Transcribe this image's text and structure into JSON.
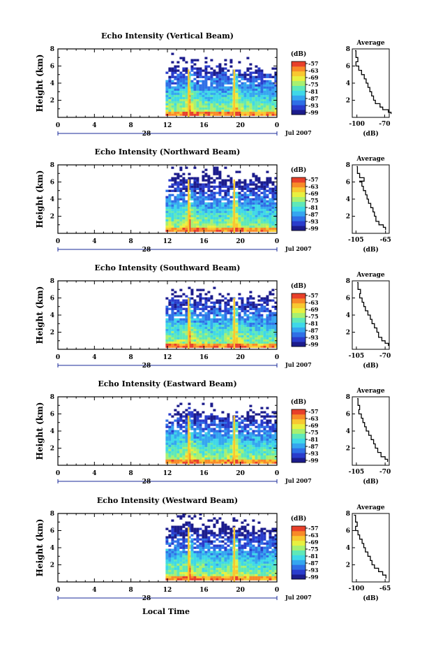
{
  "figure": {
    "xlabel": "Local Time"
  },
  "colormap": [
    "#1c1c8c",
    "#2a3ccc",
    "#2f6fe6",
    "#35a6f0",
    "#3fd8e8",
    "#5fe8b8",
    "#a8f070",
    "#e8f040",
    "#f8c830",
    "#f88a28",
    "#e8402a"
  ],
  "chart_data": [
    {
      "type": "heatmap",
      "title": "Echo Intensity (Vertical Beam)",
      "ylabel": "Height (km)",
      "ylim": [
        0,
        8
      ],
      "yticks": [
        "2",
        "4",
        "6",
        "8"
      ],
      "xlim": [
        0,
        24
      ],
      "xticks": [
        "0",
        "4",
        "8",
        "12",
        "16",
        "20",
        "0"
      ],
      "date_label": "28",
      "month_label": "Jul 2007",
      "colorbar": {
        "title": "(dB)",
        "ticks": [
          "-57",
          "-63",
          "-69",
          "-75",
          "-81",
          "-87",
          "-93",
          "-99"
        ]
      },
      "data_start_hour": 11.8,
      "echo_top_km": 5.8,
      "spike_hours": [
        14.3,
        19.3
      ],
      "profile": {
        "title": "Average",
        "xlabel": "(dB)",
        "xticks": [
          "-100",
          "-70"
        ],
        "xlim": [
          -105,
          -65
        ],
        "points": [
          [
            -63,
            0.4
          ],
          [
            -66,
            0.6
          ],
          [
            -72,
            0.9
          ],
          [
            -75,
            1.2
          ],
          [
            -80,
            1.6
          ],
          [
            -82,
            2.0
          ],
          [
            -84,
            2.5
          ],
          [
            -86,
            3.0
          ],
          [
            -88,
            3.5
          ],
          [
            -90,
            4.0
          ],
          [
            -92,
            4.5
          ],
          [
            -95,
            5.0
          ],
          [
            -98,
            5.5
          ],
          [
            -101,
            6.0
          ],
          [
            -99,
            6.5
          ],
          [
            -101,
            7.0
          ],
          [
            -102,
            7.8
          ]
        ]
      }
    },
    {
      "type": "heatmap",
      "title": "Echo Intensity (Northward Beam)",
      "ylabel": "Height (km)",
      "ylim": [
        0,
        8
      ],
      "yticks": [
        "2",
        "4",
        "6",
        "8"
      ],
      "xlim": [
        0,
        24
      ],
      "xticks": [
        "0",
        "4",
        "8",
        "12",
        "16",
        "20",
        "0"
      ],
      "date_label": "28",
      "month_label": "Jul 2007",
      "colorbar": {
        "title": "(dB)",
        "ticks": [
          "-57",
          "-63",
          "-69",
          "-75",
          "-81",
          "-87",
          "-93",
          "-99"
        ]
      },
      "data_start_hour": 11.8,
      "echo_top_km": 6.5,
      "spike_hours": [
        14.3,
        19.3
      ],
      "profile": {
        "title": "Average",
        "xlabel": "(dB)",
        "xticks": [
          "-105",
          "-65"
        ],
        "xlim": [
          -110,
          -60
        ],
        "points": [
          [
            -65,
            0.4
          ],
          [
            -68,
            0.7
          ],
          [
            -74,
            1.0
          ],
          [
            -78,
            1.4
          ],
          [
            -80,
            2.0
          ],
          [
            -82,
            2.5
          ],
          [
            -85,
            3.0
          ],
          [
            -88,
            3.5
          ],
          [
            -90,
            4.0
          ],
          [
            -92,
            4.5
          ],
          [
            -95,
            5.0
          ],
          [
            -97,
            5.5
          ],
          [
            -100,
            6.0
          ],
          [
            -94,
            6.1
          ],
          [
            -100,
            6.5
          ],
          [
            -103,
            7.0
          ],
          [
            -104,
            7.8
          ]
        ]
      }
    },
    {
      "type": "heatmap",
      "title": "Echo Intensity (Southward Beam)",
      "ylabel": "Height (km)",
      "ylim": [
        0,
        8
      ],
      "yticks": [
        "2",
        "4",
        "6",
        "8"
      ],
      "xlim": [
        0,
        24
      ],
      "xticks": [
        "0",
        "4",
        "8",
        "12",
        "16",
        "20",
        "0"
      ],
      "date_label": "28",
      "month_label": "Jul 2007",
      "colorbar": {
        "title": "(dB)",
        "ticks": [
          "-57",
          "-63",
          "-69",
          "-75",
          "-81",
          "-87",
          "-93",
          "-99"
        ]
      },
      "data_start_hour": 11.8,
      "echo_top_km": 6.2,
      "spike_hours": [
        14.3,
        19.3
      ],
      "profile": {
        "title": "Average",
        "xlabel": "(dB)",
        "xticks": [
          "-105",
          "-70"
        ],
        "xlim": [
          -110,
          -65
        ],
        "points": [
          [
            -66,
            0.4
          ],
          [
            -70,
            0.7
          ],
          [
            -74,
            1.0
          ],
          [
            -78,
            1.4
          ],
          [
            -80,
            2.0
          ],
          [
            -83,
            2.5
          ],
          [
            -86,
            3.0
          ],
          [
            -88,
            3.5
          ],
          [
            -91,
            4.0
          ],
          [
            -94,
            4.5
          ],
          [
            -96,
            5.0
          ],
          [
            -98,
            5.5
          ],
          [
            -101,
            6.0
          ],
          [
            -100,
            6.5
          ],
          [
            -103,
            7.0
          ],
          [
            -104,
            7.8
          ]
        ]
      }
    },
    {
      "type": "heatmap",
      "title": "Echo Intensity (Eastward Beam)",
      "ylabel": "Height (km)",
      "ylim": [
        0,
        8
      ],
      "yticks": [
        "2",
        "4",
        "6",
        "8"
      ],
      "xlim": [
        0,
        24
      ],
      "xticks": [
        "0",
        "4",
        "8",
        "12",
        "16",
        "20",
        "0"
      ],
      "date_label": "28",
      "month_label": "Jul 2007",
      "colorbar": {
        "title": "(dB)",
        "ticks": [
          "-57",
          "-63",
          "-69",
          "-75",
          "-81",
          "-87",
          "-93",
          "-99"
        ]
      },
      "data_start_hour": 11.8,
      "echo_top_km": 6.0,
      "spike_hours": [
        14.3,
        19.3
      ],
      "profile": {
        "title": "Average",
        "xlabel": "(dB)",
        "xticks": [
          "-105",
          "-70"
        ],
        "xlim": [
          -110,
          -65
        ],
        "points": [
          [
            -67,
            0.4
          ],
          [
            -70,
            0.7
          ],
          [
            -75,
            1.0
          ],
          [
            -79,
            1.5
          ],
          [
            -82,
            2.0
          ],
          [
            -84,
            2.5
          ],
          [
            -87,
            3.0
          ],
          [
            -90,
            3.5
          ],
          [
            -93,
            4.0
          ],
          [
            -95,
            4.5
          ],
          [
            -97,
            5.0
          ],
          [
            -99,
            5.5
          ],
          [
            -102,
            6.0
          ],
          [
            -101,
            6.5
          ],
          [
            -103,
            7.0
          ],
          [
            -104,
            7.8
          ]
        ]
      }
    },
    {
      "type": "heatmap",
      "title": "Echo Intensity (Westward Beam)",
      "ylabel": "Height (km)",
      "ylim": [
        0,
        8
      ],
      "yticks": [
        "2",
        "4",
        "6",
        "8"
      ],
      "xlim": [
        0,
        24
      ],
      "xticks": [
        "0",
        "4",
        "8",
        "12",
        "16",
        "20",
        "0"
      ],
      "date_label": "28",
      "month_label": "Jul 2007",
      "colorbar": {
        "title": "(dB)",
        "ticks": [
          "-57",
          "-63",
          "-69",
          "-75",
          "-81",
          "-87",
          "-93",
          "-99"
        ]
      },
      "data_start_hour": 11.8,
      "echo_top_km": 6.6,
      "spike_hours": [
        14.3,
        19.3
      ],
      "profile": {
        "title": "Average",
        "xlabel": "(dB)",
        "xticks": [
          "-100",
          "-65"
        ],
        "xlim": [
          -105,
          -60
        ],
        "points": [
          [
            -64,
            0.4
          ],
          [
            -68,
            0.8
          ],
          [
            -73,
            1.2
          ],
          [
            -78,
            1.6
          ],
          [
            -81,
            2.0
          ],
          [
            -83,
            2.5
          ],
          [
            -86,
            3.0
          ],
          [
            -89,
            3.5
          ],
          [
            -91,
            4.0
          ],
          [
            -93,
            4.5
          ],
          [
            -96,
            5.0
          ],
          [
            -98,
            5.5
          ],
          [
            -101,
            6.0
          ],
          [
            -99,
            6.5
          ],
          [
            -101,
            7.0
          ],
          [
            -103,
            7.8
          ]
        ]
      }
    }
  ]
}
